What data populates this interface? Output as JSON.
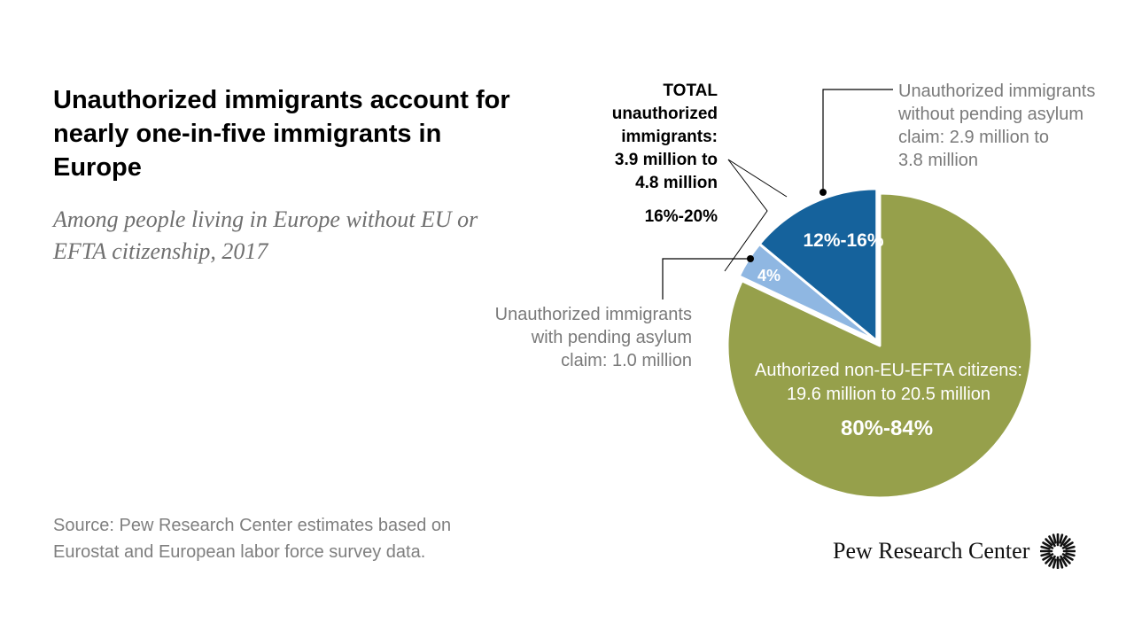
{
  "title": "Unauthorized immigrants account for nearly one-in-five immigrants in Europe",
  "subtitle": "Among people living in Europe without EU or EFTA citizenship, 2017",
  "source_lines": [
    "Source: Pew Research Center estimates based on",
    "Eurostat and European labor force survey data."
  ],
  "brand": "Pew Research Center",
  "colors": {
    "authorized": "#96a04b",
    "unauth_no_asylum": "#15629c",
    "unauth_asylum": "#8fb7e2",
    "callout_line": "#000000",
    "label_gray": "#7a7a7a"
  },
  "chart_data": {
    "type": "pie",
    "title": "Unauthorized immigrants account for nearly one-in-five immigrants in Europe",
    "subtitle": "Among people living in Europe without EU or EFTA citizenship, 2017",
    "slices": [
      {
        "key": "authorized",
        "value": 82,
        "label_lines": [
          "Authorized non-EU-EFTA citizens:",
          "19.6 million to 20.5 million"
        ],
        "pct_label": "80%-84%"
      },
      {
        "key": "unauth_asylum",
        "value": 4,
        "label_lines": [
          "Unauthorized immigrants",
          "with pending asylum",
          "claim: 1.0 million"
        ],
        "pct_label": "4%"
      },
      {
        "key": "unauth_no_asylum",
        "value": 14,
        "label_lines": [
          "Unauthorized immigrants",
          "without pending asylum",
          "claim: 2.9 million to",
          "3.8 million"
        ],
        "pct_label": "12%-16%"
      }
    ],
    "total_callout": {
      "lines": [
        "TOTAL",
        "unauthorized",
        "immigrants:",
        "3.9 million to",
        "4.8 million"
      ],
      "pct_label": "16%-20%"
    }
  }
}
